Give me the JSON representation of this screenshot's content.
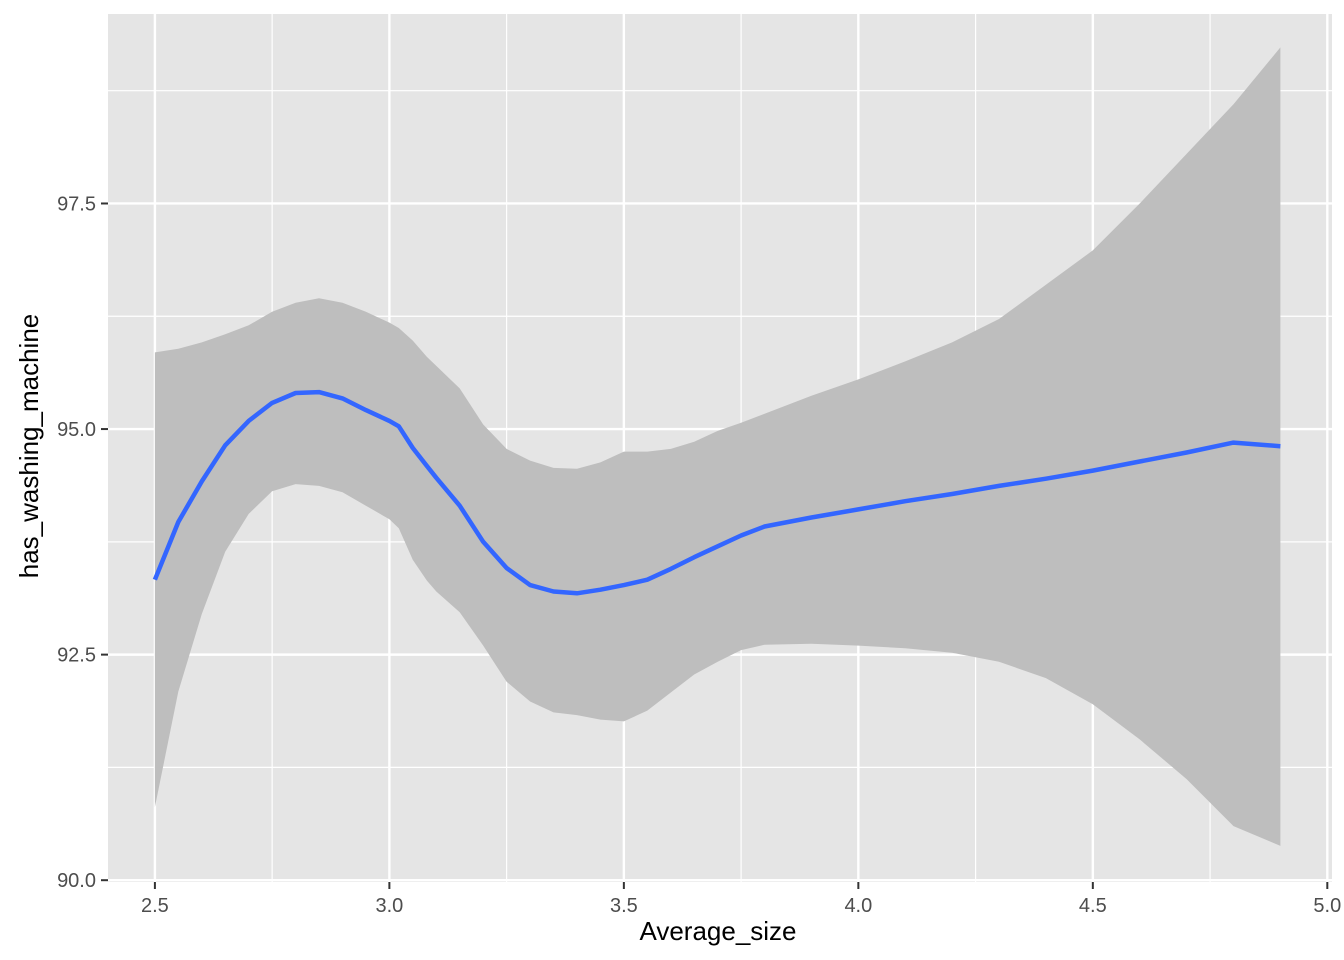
{
  "chart_data": {
    "type": "line",
    "title": "",
    "xlabel": "Average_size",
    "ylabel": "has_washing_machine",
    "xlim": [
      2.4,
      5.01
    ],
    "ylim": [
      89.98,
      99.6
    ],
    "x_ticks": [
      2.5,
      3.0,
      3.5,
      4.0,
      4.5,
      5.0
    ],
    "x_tick_labels": [
      "2.5",
      "3.0",
      "3.5",
      "4.0",
      "4.5",
      "5.0"
    ],
    "y_ticks": [
      90.0,
      92.5,
      95.0,
      97.5
    ],
    "y_tick_labels": [
      "90.0",
      "92.5",
      "95.0",
      "97.5"
    ],
    "grid": true,
    "background": "#e5e5e5",
    "grid_color": "#ffffff",
    "series": [
      {
        "color": "#3366ff",
        "band_color": "#bebebe",
        "x": [
          2.5,
          2.55,
          2.6,
          2.65,
          2.7,
          2.75,
          2.8,
          2.85,
          2.9,
          2.95,
          3.0,
          3.02,
          3.05,
          3.08,
          3.1,
          3.15,
          3.2,
          3.25,
          3.3,
          3.35,
          3.4,
          3.45,
          3.5,
          3.55,
          3.6,
          3.65,
          3.7,
          3.75,
          3.8,
          3.9,
          4.0,
          4.1,
          4.2,
          4.3,
          4.4,
          4.5,
          4.6,
          4.7,
          4.8,
          4.9
        ],
        "y": [
          93.33,
          93.97,
          94.42,
          94.82,
          95.09,
          95.29,
          95.4,
          95.41,
          95.34,
          95.21,
          95.09,
          95.03,
          94.79,
          94.59,
          94.46,
          94.15,
          93.75,
          93.46,
          93.27,
          93.2,
          93.18,
          93.22,
          93.27,
          93.33,
          93.45,
          93.58,
          93.7,
          93.82,
          93.92,
          94.02,
          94.11,
          94.2,
          94.28,
          94.37,
          94.45,
          94.54,
          94.64,
          94.74,
          94.85,
          94.81
        ],
        "ymin": [
          90.81,
          92.09,
          92.95,
          93.64,
          94.06,
          94.31,
          94.39,
          94.37,
          94.3,
          94.15,
          94.0,
          93.9,
          93.55,
          93.32,
          93.2,
          92.97,
          92.6,
          92.2,
          91.98,
          91.86,
          91.83,
          91.78,
          91.76,
          91.88,
          92.08,
          92.28,
          92.42,
          92.55,
          92.61,
          92.62,
          92.6,
          92.57,
          92.52,
          92.42,
          92.24,
          91.95,
          91.56,
          91.12,
          90.6,
          90.38
        ],
        "ymax": [
          95.85,
          95.89,
          95.96,
          96.05,
          96.15,
          96.3,
          96.4,
          96.45,
          96.4,
          96.3,
          96.18,
          96.12,
          95.98,
          95.8,
          95.7,
          95.45,
          95.05,
          94.78,
          94.65,
          94.57,
          94.56,
          94.63,
          94.75,
          94.75,
          94.78,
          94.86,
          94.98,
          95.07,
          95.17,
          95.37,
          95.55,
          95.75,
          95.96,
          96.22,
          96.6,
          96.98,
          97.5,
          98.05,
          98.6,
          99.23
        ]
      }
    ]
  }
}
